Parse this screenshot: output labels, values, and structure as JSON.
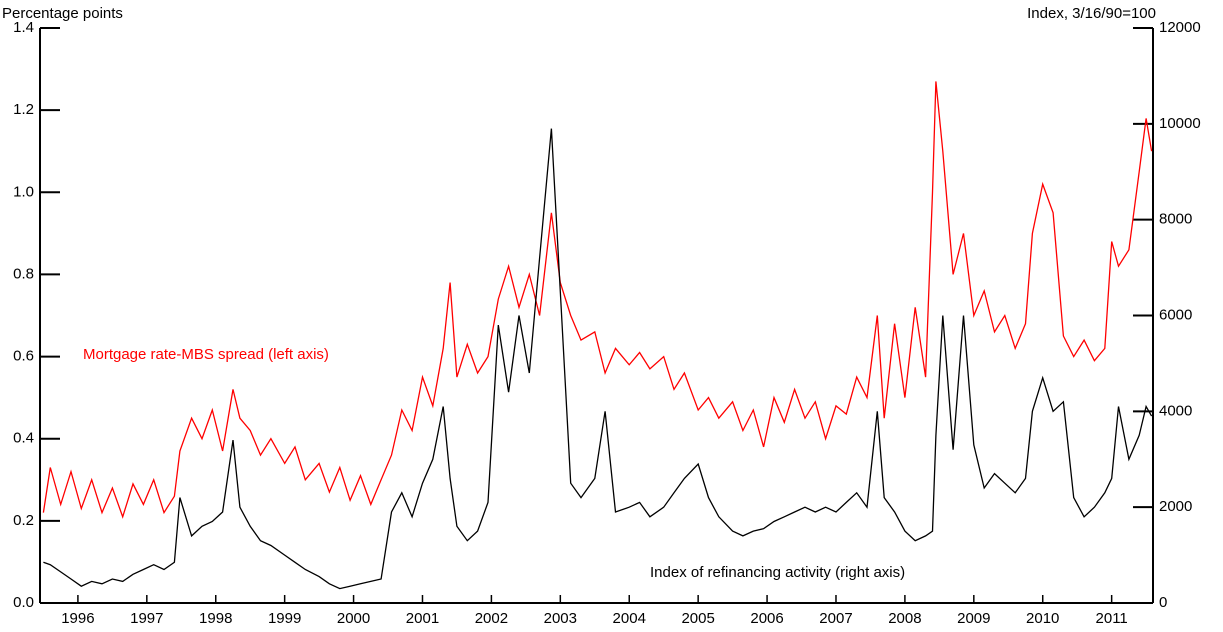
{
  "chart_data": {
    "type": "line",
    "y_axis_label": "Percentage points",
    "y2_axis_label": "Index, 3/16/90=100",
    "x": [
      1996.0,
      1996.1,
      1996.25,
      1996.4,
      1996.55,
      1996.7,
      1996.85,
      1997.0,
      1997.15,
      1997.3,
      1997.45,
      1997.6,
      1997.75,
      1997.9,
      1997.98,
      1998.15,
      1998.3,
      1998.45,
      1998.6,
      1998.75,
      1998.85,
      1999.0,
      1999.15,
      1999.3,
      1999.5,
      1999.65,
      1999.8,
      2000.0,
      2000.15,
      2000.3,
      2000.45,
      2000.6,
      2000.75,
      2000.9,
      2001.05,
      2001.2,
      2001.35,
      2001.5,
      2001.65,
      2001.8,
      2001.9,
      2002.0,
      2002.15,
      2002.3,
      2002.45,
      2002.6,
      2002.75,
      2002.9,
      2003.05,
      2003.2,
      2003.37,
      2003.5,
      2003.65,
      2003.8,
      2004.0,
      2004.15,
      2004.3,
      2004.5,
      2004.65,
      2004.8,
      2005.0,
      2005.15,
      2005.3,
      2005.5,
      2005.65,
      2005.8,
      2006.0,
      2006.15,
      2006.3,
      2006.45,
      2006.6,
      2006.75,
      2006.9,
      2007.05,
      2007.2,
      2007.35,
      2007.5,
      2007.65,
      2007.8,
      2007.95,
      2008.1,
      2008.2,
      2008.35,
      2008.5,
      2008.65,
      2008.8,
      2008.9,
      2008.95,
      2009.05,
      2009.2,
      2009.35,
      2009.5,
      2009.65,
      2009.8,
      2009.95,
      2010.1,
      2010.25,
      2010.35,
      2010.5,
      2010.65,
      2010.8,
      2010.95,
      2011.1,
      2011.25,
      2011.4,
      2011.5,
      2011.6,
      2011.75,
      2011.9,
      2012.0,
      2012.08
    ],
    "series": [
      {
        "name": "Mortgage rate-MBS spread (left axis)",
        "color": "#ff0000",
        "axis": "y",
        "values": [
          0.22,
          0.33,
          0.24,
          0.32,
          0.23,
          0.3,
          0.22,
          0.28,
          0.21,
          0.29,
          0.24,
          0.3,
          0.22,
          0.26,
          0.37,
          0.45,
          0.4,
          0.47,
          0.37,
          0.52,
          0.45,
          0.42,
          0.36,
          0.4,
          0.34,
          0.38,
          0.3,
          0.34,
          0.27,
          0.33,
          0.25,
          0.31,
          0.24,
          0.3,
          0.36,
          0.47,
          0.42,
          0.55,
          0.48,
          0.62,
          0.78,
          0.55,
          0.63,
          0.56,
          0.6,
          0.74,
          0.82,
          0.72,
          0.8,
          0.7,
          0.95,
          0.78,
          0.7,
          0.64,
          0.66,
          0.56,
          0.62,
          0.58,
          0.61,
          0.57,
          0.6,
          0.52,
          0.56,
          0.47,
          0.5,
          0.45,
          0.49,
          0.42,
          0.47,
          0.38,
          0.5,
          0.44,
          0.52,
          0.45,
          0.49,
          0.4,
          0.48,
          0.46,
          0.55,
          0.5,
          0.7,
          0.45,
          0.68,
          0.5,
          0.72,
          0.55,
          1.0,
          1.27,
          1.1,
          0.8,
          0.9,
          0.7,
          0.76,
          0.66,
          0.7,
          0.62,
          0.68,
          0.9,
          1.02,
          0.95,
          0.65,
          0.6,
          0.64,
          0.59,
          0.62,
          0.88,
          0.82,
          0.86,
          1.05,
          1.18,
          1.1
        ]
      },
      {
        "name": "Index of refinancing activity (right axis)",
        "color": "#000000",
        "axis": "y2",
        "values": [
          850,
          800,
          650,
          500,
          350,
          450,
          400,
          500,
          450,
          600,
          700,
          800,
          700,
          850,
          2200,
          1400,
          1600,
          1700,
          1900,
          3400,
          2000,
          1600,
          1300,
          1200,
          1000,
          850,
          700,
          550,
          400,
          300,
          350,
          400,
          450,
          500,
          1900,
          2300,
          1800,
          2500,
          3000,
          4100,
          2600,
          1600,
          1300,
          1500,
          2100,
          5800,
          4400,
          6000,
          4800,
          7200,
          9900,
          6500,
          2500,
          2200,
          2600,
          4000,
          1900,
          2000,
          2100,
          1800,
          2000,
          2300,
          2600,
          2900,
          2200,
          1800,
          1500,
          1400,
          1500,
          1550,
          1700,
          1800,
          1900,
          2000,
          1900,
          2000,
          1900,
          2100,
          2300,
          2000,
          4000,
          2200,
          1900,
          1500,
          1300,
          1400,
          1500,
          3500,
          6000,
          3200,
          6000,
          3300,
          2400,
          2700,
          2500,
          2300,
          2600,
          4000,
          4700,
          4000,
          4200,
          2200,
          1800,
          2000,
          2300,
          2600,
          4100,
          3000,
          3500,
          4100,
          3900
        ]
      }
    ],
    "xlim": [
      1995.95,
      2012.1
    ],
    "xticks": [
      {
        "value": 1996.5,
        "label": "1996"
      },
      {
        "value": 1997.5,
        "label": "1997"
      },
      {
        "value": 1998.5,
        "label": "1998"
      },
      {
        "value": 1999.5,
        "label": "1999"
      },
      {
        "value": 2000.5,
        "label": "2000"
      },
      {
        "value": 2001.5,
        "label": "2001"
      },
      {
        "value": 2002.5,
        "label": "2002"
      },
      {
        "value": 2003.5,
        "label": "2003"
      },
      {
        "value": 2004.5,
        "label": "2004"
      },
      {
        "value": 2005.5,
        "label": "2005"
      },
      {
        "value": 2006.5,
        "label": "2006"
      },
      {
        "value": 2007.5,
        "label": "2007"
      },
      {
        "value": 2008.5,
        "label": "2008"
      },
      {
        "value": 2009.5,
        "label": "2009"
      },
      {
        "value": 2010.5,
        "label": "2010"
      },
      {
        "value": 2011.5,
        "label": "2011"
      }
    ],
    "ylim": [
      0,
      1.4
    ],
    "yticks": [
      {
        "value": 0,
        "label": "0.0"
      },
      0.2,
      0.4,
      0.6,
      0.8,
      {
        "value": 1,
        "label": "1.0"
      },
      1.2,
      1.4
    ],
    "y2lim": [
      0,
      12000
    ],
    "y2ticks": [
      0,
      2000,
      4000,
      6000,
      8000,
      10000,
      12000
    ],
    "grid": false
  }
}
